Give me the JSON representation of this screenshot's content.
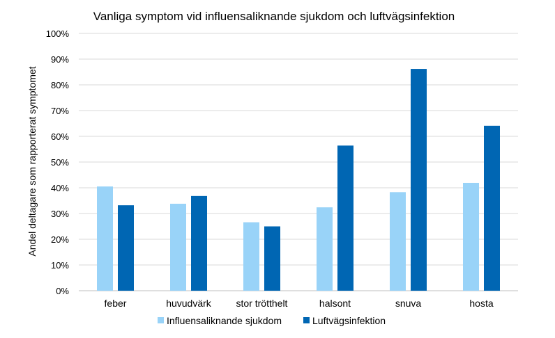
{
  "chart_data": {
    "type": "bar",
    "title": "Vanliga symptom vid influensaliknande sjukdom och luftvägsinfektion",
    "xlabel": "",
    "ylabel": "Andel deltagare som rapporterat symptomet",
    "categories": [
      "feber",
      "huvudvärk",
      "stor trötthelt",
      "halsont",
      "snuva",
      "hosta"
    ],
    "series": [
      {
        "name": "Influensaliknande sjukdom",
        "values": [
          40.5,
          33.8,
          26.6,
          32.4,
          38.3,
          41.9
        ],
        "color": "#99d3f8"
      },
      {
        "name": "Luftvägsinfektion",
        "values": [
          33.2,
          36.8,
          25.0,
          56.4,
          86.2,
          64.1
        ],
        "color": "#0066b3"
      }
    ],
    "ylim": [
      0,
      100
    ],
    "yticks": [
      0,
      10,
      20,
      30,
      40,
      50,
      60,
      70,
      80,
      90,
      100
    ],
    "ytick_suffix": "%",
    "grid": true,
    "legend_position": "bottom"
  }
}
